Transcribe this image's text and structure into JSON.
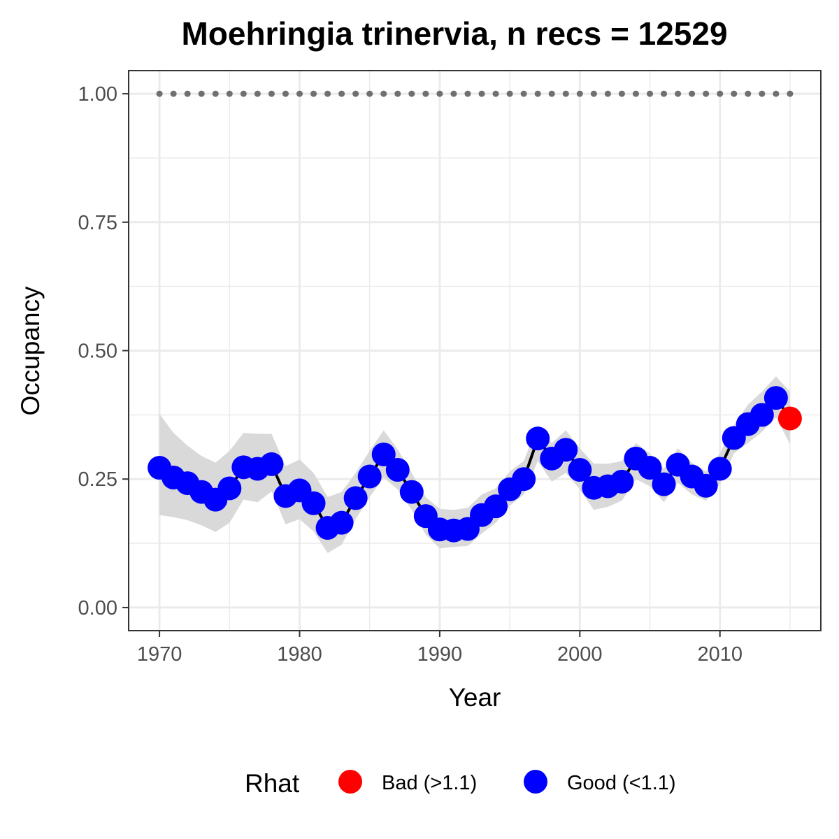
{
  "chart_data": {
    "type": "line",
    "title": "Moehringia trinervia, n recs = 12529",
    "xlabel": "Year",
    "ylabel": "Occupancy",
    "xlim": [
      1967.8,
      2017.2
    ],
    "ylim": [
      -0.045,
      1.045
    ],
    "x_ticks": [
      {
        "value": 1970,
        "label": "1970"
      },
      {
        "value": 1980,
        "label": "1980"
      },
      {
        "value": 1990,
        "label": "1990"
      },
      {
        "value": 2000,
        "label": "2000"
      },
      {
        "value": 2010,
        "label": "2010"
      }
    ],
    "y_ticks": [
      {
        "value": 0,
        "label": "0.00"
      },
      {
        "value": 0.25,
        "label": "0.25"
      },
      {
        "value": 0.5,
        "label": "0.50"
      },
      {
        "value": 0.75,
        "label": "0.75"
      },
      {
        "value": 1,
        "label": "1.00"
      }
    ],
    "grid": true,
    "years": [
      1970,
      1971,
      1972,
      1973,
      1974,
      1975,
      1976,
      1977,
      1978,
      1979,
      1980,
      1981,
      1982,
      1983,
      1984,
      1985,
      1986,
      1987,
      1988,
      1989,
      1990,
      1991,
      1992,
      1993,
      1994,
      1995,
      1996,
      1997,
      1998,
      1999,
      2000,
      2001,
      2002,
      2003,
      2004,
      2005,
      2006,
      2007,
      2008,
      2009,
      2010,
      2011,
      2012,
      2013,
      2014,
      2015
    ],
    "occupancy": [
      0.272,
      0.253,
      0.242,
      0.225,
      0.21,
      0.232,
      0.273,
      0.27,
      0.279,
      0.217,
      0.228,
      0.203,
      0.155,
      0.165,
      0.213,
      0.255,
      0.298,
      0.268,
      0.225,
      0.178,
      0.152,
      0.15,
      0.153,
      0.18,
      0.197,
      0.23,
      0.25,
      0.329,
      0.29,
      0.307,
      0.268,
      0.233,
      0.236,
      0.245,
      0.29,
      0.272,
      0.24,
      0.278,
      0.255,
      0.237,
      0.27,
      0.33,
      0.357,
      0.375,
      0.408,
      0.368
    ],
    "lower_ci": [
      0.18,
      0.176,
      0.17,
      0.16,
      0.147,
      0.165,
      0.21,
      0.205,
      0.226,
      0.162,
      0.172,
      0.148,
      0.106,
      0.122,
      0.172,
      0.215,
      0.253,
      0.23,
      0.19,
      0.142,
      0.115,
      0.118,
      0.12,
      0.144,
      0.165,
      0.198,
      0.22,
      0.285,
      0.245,
      0.262,
      0.23,
      0.19,
      0.196,
      0.208,
      0.25,
      0.236,
      0.205,
      0.243,
      0.22,
      0.208,
      0.24,
      0.3,
      0.32,
      0.342,
      0.37,
      0.318
    ],
    "upper_ci": [
      0.377,
      0.34,
      0.315,
      0.295,
      0.282,
      0.305,
      0.34,
      0.338,
      0.338,
      0.275,
      0.288,
      0.262,
      0.215,
      0.225,
      0.262,
      0.305,
      0.345,
      0.308,
      0.262,
      0.215,
      0.192,
      0.19,
      0.194,
      0.22,
      0.232,
      0.265,
      0.285,
      0.355,
      0.32,
      0.345,
      0.31,
      0.28,
      0.28,
      0.285,
      0.32,
      0.3,
      0.27,
      0.31,
      0.282,
      0.265,
      0.3,
      0.355,
      0.395,
      0.42,
      0.45,
      0.42
    ],
    "rhat_bad": [
      false,
      false,
      false,
      false,
      false,
      false,
      false,
      false,
      false,
      false,
      false,
      false,
      false,
      false,
      false,
      false,
      false,
      false,
      false,
      false,
      false,
      false,
      false,
      false,
      false,
      false,
      false,
      false,
      false,
      false,
      false,
      false,
      false,
      false,
      false,
      false,
      false,
      false,
      false,
      false,
      false,
      false,
      false,
      false,
      false,
      true
    ],
    "reference_line": {
      "value": 1.0,
      "style": "dotted"
    },
    "legend": {
      "title": "Rhat",
      "position": "bottom",
      "items": [
        {
          "label": "Bad (>1.1)",
          "color": "#ff0000"
        },
        {
          "label": "Good (<1.1)",
          "color": "#0000ff"
        }
      ]
    },
    "colors": {
      "good": "#0000ff",
      "bad": "#ff0000",
      "line": "#000000",
      "ci_band": "#d9d9d9",
      "reference": "#707070",
      "grid": "#ebebeb",
      "panel_border": "#333333"
    }
  }
}
